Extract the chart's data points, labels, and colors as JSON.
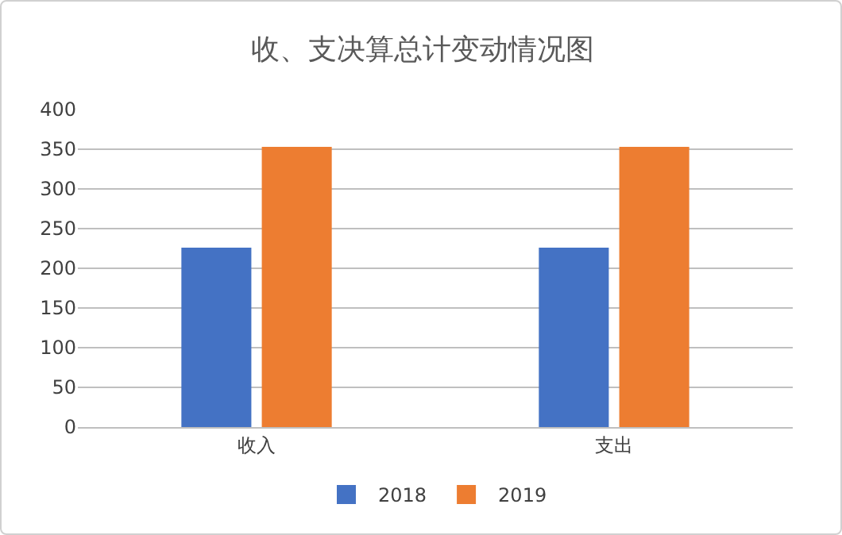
{
  "chart_data": {
    "type": "bar",
    "title": "收、支决算总计变动情况图",
    "categories": [
      "收入",
      "支出"
    ],
    "series": [
      {
        "name": "2018",
        "color": "#4472c4",
        "values": [
          226,
          226
        ]
      },
      {
        "name": "2019",
        "color": "#ed7d31",
        "values": [
          353,
          353
        ]
      }
    ],
    "ylim": [
      0,
      400
    ],
    "yticks": [
      0,
      50,
      100,
      150,
      200,
      250,
      300,
      350,
      400
    ],
    "grid": "y",
    "legend": "bottom"
  }
}
